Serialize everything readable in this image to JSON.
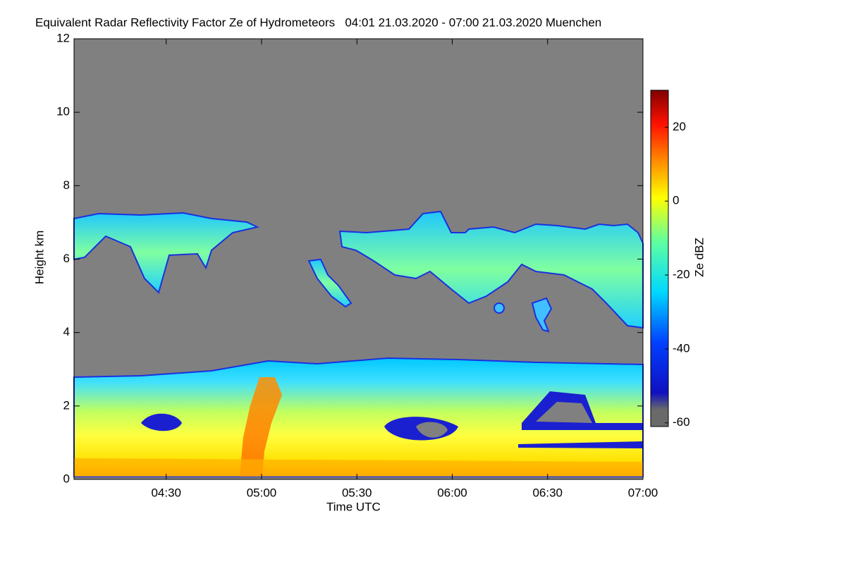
{
  "chart_data": {
    "type": "heatmap",
    "title": "Equivalent Radar Reflectivity Factor Ze of Hydrometeors   04:01 21.03.2020 - 07:00 21.03.2020 Muenchen",
    "xlabel": "Time UTC",
    "ylabel": "Height km",
    "xlim": [
      241,
      420
    ],
    "xticks": [
      {
        "value": 270,
        "label": "04:30"
      },
      {
        "value": 300,
        "label": "05:00"
      },
      {
        "value": 330,
        "label": "05:30"
      },
      {
        "value": 360,
        "label": "06:00"
      },
      {
        "value": 390,
        "label": "06:30"
      },
      {
        "value": 420,
        "label": "07:00"
      }
    ],
    "ylim": [
      0,
      12
    ],
    "yticks": [
      0,
      2,
      4,
      6,
      8,
      10,
      12
    ],
    "colorbar": {
      "label": "Ze dBZ",
      "clim": [
        -61,
        30
      ],
      "ticks": [
        20,
        0,
        -20,
        -40,
        -60
      ]
    }
  }
}
